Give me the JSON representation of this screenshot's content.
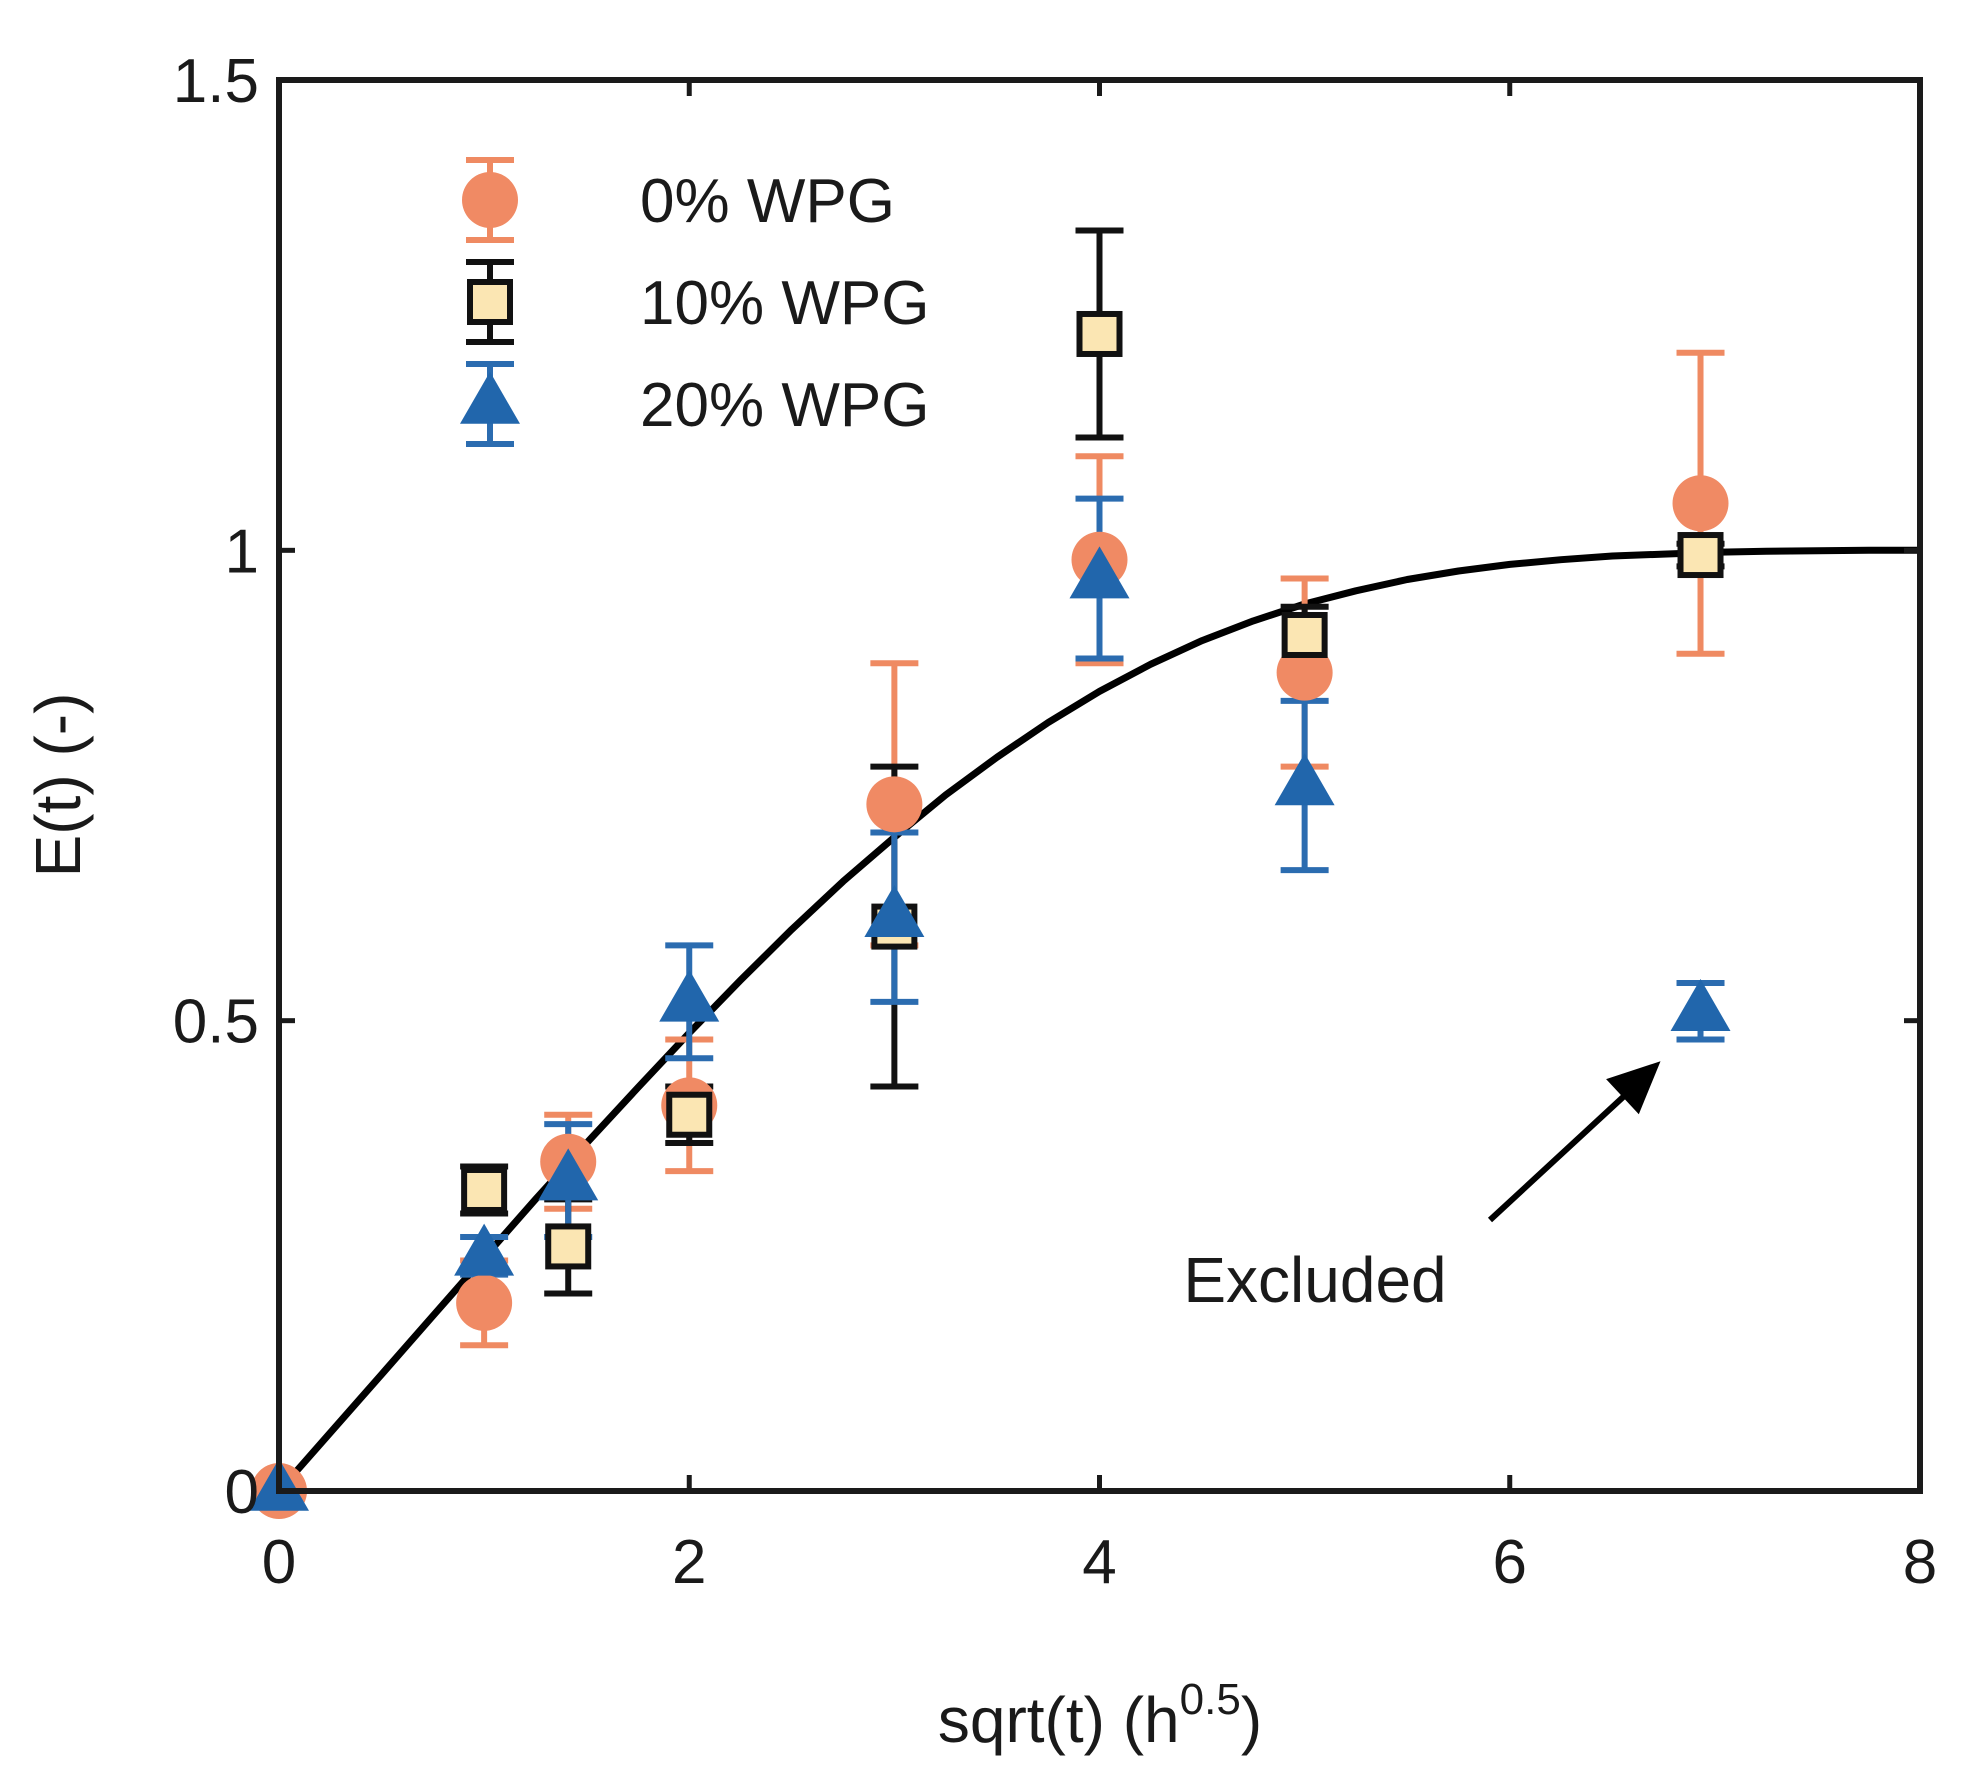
{
  "chart_data": {
    "type": "scatter",
    "title": "",
    "xlabel": "sqrt(t) (h",
    "xlabel_sup": "0.5",
    "xlabel_close": ")",
    "ylabel": "E(t) (-)",
    "xlim": [
      0,
      8
    ],
    "ylim": [
      0,
      1.5
    ],
    "xticks": [
      0,
      2,
      4,
      6,
      8
    ],
    "xtick_labels": [
      "0",
      "2",
      "4",
      "6",
      "8"
    ],
    "yticks": [
      0,
      0.5,
      1,
      1.5
    ],
    "ytick_labels": [
      "0",
      "0.5",
      "1",
      "1.5"
    ],
    "grid": false,
    "legend_position": "top-left",
    "series": [
      {
        "name": "0% WPG",
        "marker": "circle",
        "color": "#f08a64",
        "errbar_color": "#ef8a62",
        "points": [
          {
            "x": 0,
            "y": 0,
            "err": 0
          },
          {
            "x": 1,
            "y": 0.2,
            "err": 0.045
          },
          {
            "x": 1.41,
            "y": 0.35,
            "err": 0.05
          },
          {
            "x": 2,
            "y": 0.41,
            "err": 0.07
          },
          {
            "x": 3,
            "y": 0.73,
            "err": 0.15
          },
          {
            "x": 4,
            "y": 0.99,
            "err": 0.11
          },
          {
            "x": 5,
            "y": 0.87,
            "err": 0.1
          },
          {
            "x": 6.93,
            "y": 1.05,
            "err": 0.16
          }
        ]
      },
      {
        "name": "10% WPG",
        "marker": "square",
        "color": "#fbe6b3",
        "errbar_color": "#111111",
        "points": [
          {
            "x": 1,
            "y": 0.32,
            "err": 0.025
          },
          {
            "x": 1.41,
            "y": 0.26,
            "err": 0.05
          },
          {
            "x": 2,
            "y": 0.4,
            "err": 0.03
          },
          {
            "x": 3,
            "y": 0.6,
            "err": 0.17
          },
          {
            "x": 4,
            "y": 1.23,
            "err": 0.11
          },
          {
            "x": 5,
            "y": 0.91,
            "err": 0.03
          },
          {
            "x": 6.93,
            "y": 0.995,
            "err": 0.012
          }
        ]
      },
      {
        "name": "20% WPG",
        "marker": "triangle",
        "color": "#2166ac",
        "errbar_color": "#2b6cb0",
        "points": [
          {
            "x": 0,
            "y": 0,
            "err": 0
          },
          {
            "x": 1,
            "y": 0.25,
            "err": 0.02
          },
          {
            "x": 1.41,
            "y": 0.33,
            "err": 0.06
          },
          {
            "x": 2,
            "y": 0.52,
            "err": 0.06
          },
          {
            "x": 3,
            "y": 0.61,
            "err": 0.09
          },
          {
            "x": 4,
            "y": 0.97,
            "err": 0.085
          },
          {
            "x": 5,
            "y": 0.75,
            "err": 0.09
          },
          {
            "x": 6.93,
            "y": 0.51,
            "err": 0.03
          }
        ]
      }
    ],
    "fit_curve": {
      "name": "fit",
      "color": "#000000",
      "x": [
        0,
        0.25,
        0.5,
        0.75,
        1,
        1.25,
        1.5,
        1.75,
        2,
        2.25,
        2.5,
        2.75,
        3,
        3.25,
        3.5,
        3.75,
        4,
        4.25,
        4.5,
        4.75,
        5,
        5.25,
        5.5,
        5.75,
        6,
        6.25,
        6.5,
        6.75,
        7,
        7.25,
        7.5,
        7.75,
        8
      ],
      "y": [
        0,
        0.062,
        0.124,
        0.186,
        0.248,
        0.31,
        0.37,
        0.429,
        0.487,
        0.543,
        0.597,
        0.648,
        0.695,
        0.74,
        0.78,
        0.817,
        0.85,
        0.879,
        0.904,
        0.925,
        0.943,
        0.957,
        0.969,
        0.978,
        0.985,
        0.99,
        0.994,
        0.996,
        0.998,
        0.999,
        0.9995,
        1.0,
        1.0
      ]
    },
    "annotations": [
      {
        "text": "Excluded",
        "target_x": 6.93,
        "target_y": 0.51
      }
    ]
  }
}
